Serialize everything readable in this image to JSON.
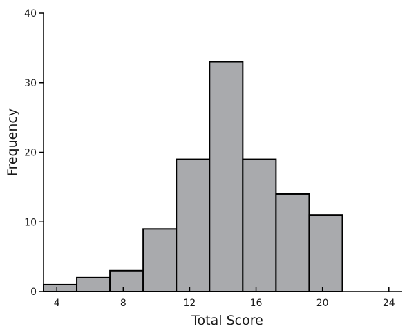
{
  "chart_data": {
    "type": "bar",
    "title": "",
    "xlabel": "Total Score",
    "ylabel": "Frequency",
    "xlim": [
      3.2,
      24.8
    ],
    "ylim": [
      0,
      40
    ],
    "x_ticks": [
      4,
      8,
      12,
      16,
      20,
      24
    ],
    "y_ticks": [
      0,
      10,
      20,
      30,
      40
    ],
    "bins": [
      {
        "start": 3.2,
        "end": 5.2,
        "value": 1
      },
      {
        "start": 5.2,
        "end": 7.2,
        "value": 2
      },
      {
        "start": 7.2,
        "end": 9.2,
        "value": 3
      },
      {
        "start": 9.2,
        "end": 11.2,
        "value": 9
      },
      {
        "start": 11.2,
        "end": 13.2,
        "value": 19
      },
      {
        "start": 13.2,
        "end": 15.2,
        "value": 33
      },
      {
        "start": 15.2,
        "end": 17.2,
        "value": 19
      },
      {
        "start": 17.2,
        "end": 19.2,
        "value": 14
      },
      {
        "start": 19.2,
        "end": 21.2,
        "value": 11
      }
    ],
    "bar_color": "#a9aaad",
    "edge_color": "#000000",
    "grid": false,
    "legend": "none"
  }
}
